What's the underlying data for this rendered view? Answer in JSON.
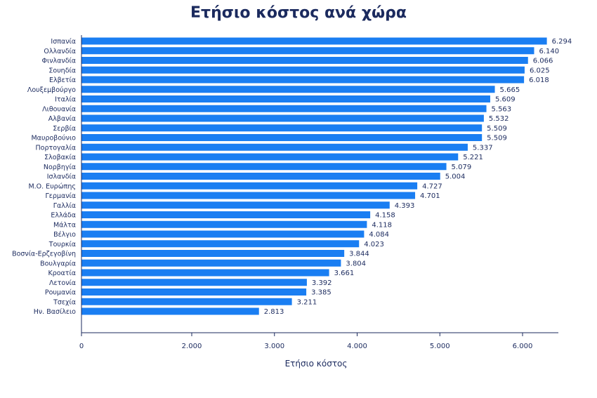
{
  "chart_data": {
    "type": "bar",
    "orientation": "horizontal",
    "title": "Ετήσιο κόστος ανά χώρα",
    "xlabel": "Ετήσιο κόστος",
    "ylabel": "",
    "categories": [
      "Ισπανία",
      "Ολλανδία",
      "Φινλανδία",
      "Σουηδία",
      "Ελβετία",
      "Λουξεμβούργο",
      "Ιταλία",
      "Λιθουανία",
      "Αλβανία",
      "Σερβία",
      "Μαυροβούνιο",
      "Πορτογαλία",
      "Σλοβακία",
      "Νορβηγία",
      "Ισλανδία",
      "Μ.Ο. Ευρώπης",
      "Γερμανία",
      "Γαλλία",
      "Ελλάδα",
      "Μάλτα",
      "Βέλγιο",
      "Τουρκία",
      "Βοσνία-Ερζεγοβίνη",
      "Βουλγαρία",
      "Κροατία",
      "Λετονία",
      "Ρουμανία",
      "Τσεχία",
      "Ην. Βασίλειο"
    ],
    "values": [
      6294,
      6140,
      6066,
      6025,
      6018,
      5665,
      5609,
      5563,
      5532,
      5509,
      5509,
      5337,
      5221,
      5079,
      5004,
      4727,
      4701,
      4393,
      4158,
      4118,
      4084,
      4023,
      3844,
      3804,
      3661,
      3392,
      3385,
      3211,
      2813
    ],
    "value_labels": [
      "6.294",
      "6.140",
      "6.066",
      "6.025",
      "6.018",
      "5.665",
      "5.609",
      "5.563",
      "5.532",
      "5.509",
      "5.509",
      "5.337",
      "5.221",
      "5.079",
      "5.004",
      "4.727",
      "4.701",
      "4.393",
      "4.158",
      "4.118",
      "4.084",
      "4.023",
      "3.844",
      "3.804",
      "3.661",
      "3.392",
      "3.385",
      "3.211",
      "2.813"
    ],
    "x_ticks": [
      0,
      2000,
      3000,
      4000,
      5000,
      6000
    ],
    "x_tick_labels": [
      "0",
      "2.000",
      "3.000",
      "4.000",
      "5.000",
      "6.000"
    ],
    "x_scale": "piecewise: 0–2000 compressed, 2000–6000 linear",
    "grid": false,
    "legend": "none",
    "bar_color": "#1a7ef2"
  },
  "colors": {
    "bar": "#1a7ef2",
    "text": "#1b2a5e",
    "axis": "#1b2a5e"
  }
}
